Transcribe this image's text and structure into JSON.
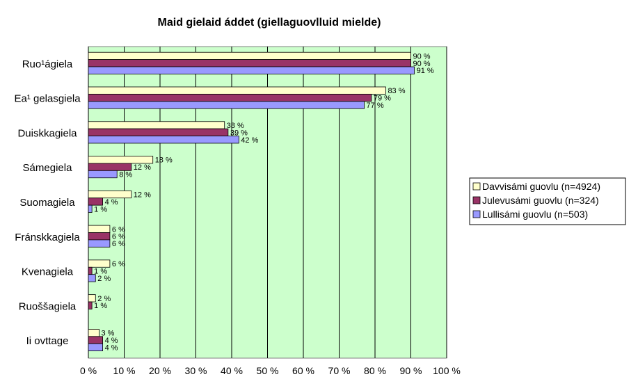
{
  "chart_data": {
    "type": "bar",
    "orientation": "horizontal",
    "title": "Maid gielaid áddet (giellaguovlluid mielde)",
    "categories": [
      "Ruo¹ágiela",
      "Ea¹ gelasgiela",
      "Duiskkagiela",
      "Sámegiela",
      "Suomagiela",
      "Fránskkagiela",
      "Kvenagiela",
      "Ruoššagiela",
      "Ii ovttage"
    ],
    "series": [
      {
        "name": "Davvisámi guovlu (n=4924)",
        "color": "#FFFFCC",
        "values": [
          90,
          83,
          38,
          18,
          12,
          6,
          6,
          2,
          3
        ],
        "labels": [
          "90 %",
          "83 %",
          "38 %",
          "18 %",
          "12 %",
          "6 %",
          "6 %",
          "2 %",
          "3 %"
        ]
      },
      {
        "name": "Julevusámi guovlu (n=324)",
        "color": "#993366",
        "values": [
          90,
          79,
          39,
          12,
          4,
          6,
          1,
          1,
          4
        ],
        "labels": [
          "90 %",
          "79 %",
          "39 %",
          "12 %",
          "4 %",
          "6 %",
          "1 %",
          "1 %",
          "4 %"
        ]
      },
      {
        "name": "Lullisámi guovlu (n=503)",
        "color": "#9999FF",
        "values": [
          91,
          77,
          42,
          8,
          1,
          6,
          2,
          null,
          4
        ],
        "labels": [
          "91 %",
          "77 %",
          "42 %",
          "8 %",
          "1 %",
          "6 %",
          "2 %",
          null,
          "4 %"
        ]
      }
    ],
    "x_ticks": [
      "0 %",
      "10 %",
      "20 %",
      "30 %",
      "40 %",
      "50 %",
      "60 %",
      "70 %",
      "80 %",
      "90 %",
      "100 %"
    ],
    "xlim": [
      0,
      100
    ],
    "grid": true,
    "legend_position": "right",
    "plot_background": "#CCFFCC"
  }
}
